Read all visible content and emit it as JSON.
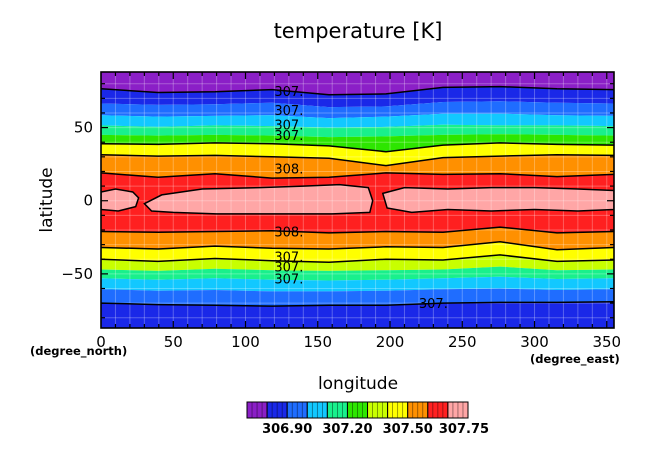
{
  "chart_data": {
    "type": "heatmap",
    "subtype": "filled-contour",
    "title": "temperature [K]",
    "xlabel": "longitude",
    "ylabel": "latitude",
    "x_unit": "(degree_east)",
    "y_unit": "(degree_north)",
    "xlim": [
      0,
      355
    ],
    "ylim": [
      -87,
      88
    ],
    "xticks": [
      0,
      50,
      100,
      150,
      200,
      250,
      300,
      350
    ],
    "yticks": [
      -50,
      0,
      50
    ],
    "grid": true,
    "contour_levels": [
      306.75,
      306.9,
      307.05,
      307.2,
      307.35,
      307.5,
      307.65,
      307.75
    ],
    "contour_labels": [
      "307.",
      "307.",
      "307.",
      "307.",
      "308.",
      "308.",
      "307.",
      "307.",
      "307.",
      "307."
    ],
    "band_colors": [
      "#8b1fc7",
      "#1a28e8",
      "#1f6dff",
      "#12c8ff",
      "#19f08c",
      "#2de600",
      "#c8ff00",
      "#ffff00",
      "#ff9000",
      "#ff2020",
      "#ffa6a6"
    ],
    "colorbar_labels": [
      "306.90",
      "307.20",
      "307.50",
      "307.75"
    ],
    "colorbar_boxes": 11
  }
}
